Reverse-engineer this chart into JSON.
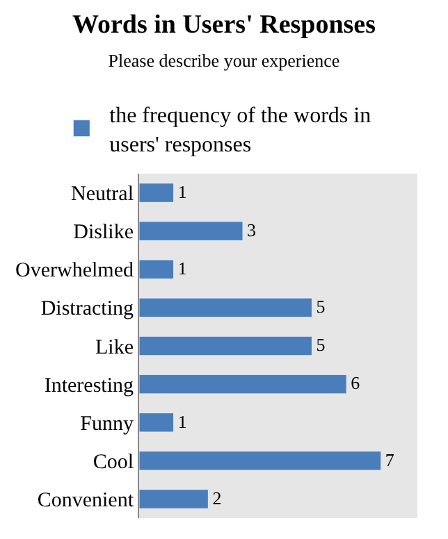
{
  "chart_data": {
    "type": "bar",
    "orientation": "horizontal",
    "title": "Words in Users' Responses",
    "subtitle": "Please describe your experience",
    "categories": [
      "Neutral",
      "Dislike",
      "Overwhelmed",
      "Distracting",
      "Like",
      "Interesting",
      "Funny",
      "Cool",
      "Convenient"
    ],
    "series": [
      {
        "name": "the frequency of the words in users' responses",
        "color": "#4a7ebb",
        "values": [
          1,
          3,
          1,
          5,
          5,
          6,
          1,
          7,
          2
        ]
      }
    ],
    "data_labels": true,
    "tick_labels": "y",
    "legend": "top"
  }
}
